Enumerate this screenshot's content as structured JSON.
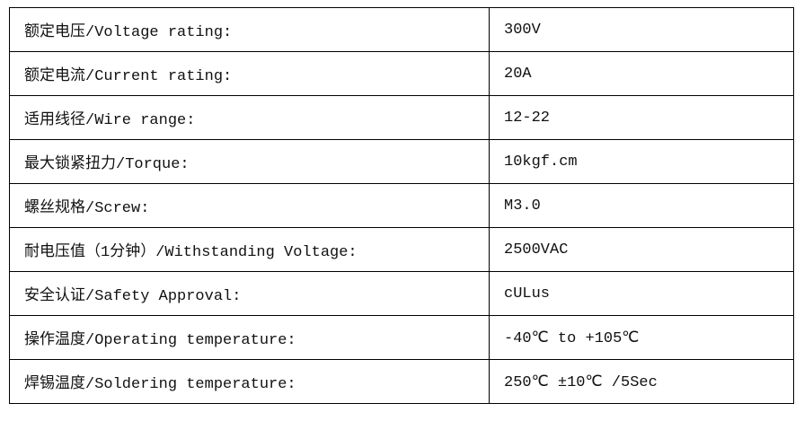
{
  "rows": [
    {
      "label": "额定电压/Voltage rating:",
      "value": "300V"
    },
    {
      "label": "额定电流/Current rating:",
      "value": "20A"
    },
    {
      "label": "适用线径/Wire range:",
      "value": "12-22"
    },
    {
      "label": "最大锁紧扭力/Torque:",
      "value": "10kgf.cm"
    },
    {
      "label": "螺丝规格/Screw:",
      "value": "M3.0"
    },
    {
      "label": "耐电压值（1分钟）/Withstanding Voltage:",
      "value": "2500VAC"
    },
    {
      "label": "安全认证/Safety Approval:",
      "value": "cULus"
    },
    {
      "label": "操作温度/Operating temperature:",
      "value": "-40℃ to +105℃"
    },
    {
      "label": "焊锡温度/Soldering temperature:",
      "value": "250℃ ±10℃ /5Sec"
    }
  ]
}
